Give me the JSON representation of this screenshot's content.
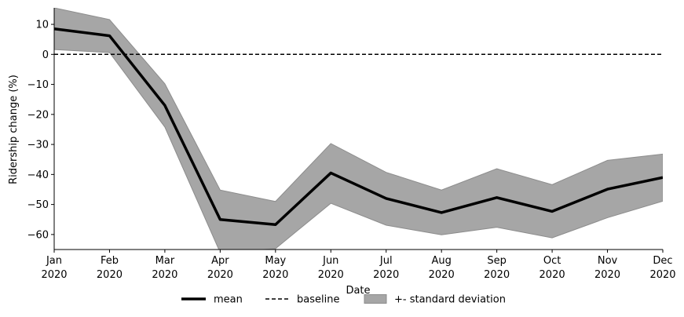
{
  "chart_data": {
    "type": "line",
    "title": "",
    "xlabel": "Date",
    "ylabel": "Ridership change (%)",
    "x_tick_labels": [
      [
        "Jan",
        "2020"
      ],
      [
        "Feb",
        "2020"
      ],
      [
        "Mar",
        "2020"
      ],
      [
        "Apr",
        "2020"
      ],
      [
        "May",
        "2020"
      ],
      [
        "Jun",
        "2020"
      ],
      [
        "Jul",
        "2020"
      ],
      [
        "Aug",
        "2020"
      ],
      [
        "Sep",
        "2020"
      ],
      [
        "Oct",
        "2020"
      ],
      [
        "Nov",
        "2020"
      ],
      [
        "Dec",
        "2020"
      ]
    ],
    "x": [
      "2020-01-01",
      "2020-02-01",
      "2020-03-01",
      "2020-04-01",
      "2020-05-01",
      "2020-06-01",
      "2020-07-01",
      "2020-08-01",
      "2020-09-01",
      "2020-10-01",
      "2020-11-01",
      "2020-12-01"
    ],
    "y_ticks": [
      10,
      0,
      -10,
      -20,
      -30,
      -40,
      -50,
      -60
    ],
    "ylim": [
      -65,
      15.5
    ],
    "series": [
      {
        "name": "mean",
        "color": "#000000",
        "values": [
          8.5,
          6.2,
          -17.0,
          -55.0,
          -56.7,
          -39.5,
          -48.0,
          -52.7,
          -47.7,
          -52.3,
          -44.9,
          -41.0
        ]
      }
    ],
    "band": {
      "name": "+- standard deviation",
      "color": "#a6a6a6",
      "edge_color": "#8c8c8c",
      "upper": [
        15.5,
        11.6,
        -9.8,
        -45.2,
        -49.0,
        -29.7,
        -39.3,
        -45.2,
        -38.1,
        -43.4,
        -35.3,
        -33.2
      ],
      "lower": [
        1.6,
        0.6,
        -24.2,
        -66.0,
        -64.7,
        -49.6,
        -56.9,
        -60.1,
        -57.6,
        -61.1,
        -54.4,
        -48.9
      ]
    },
    "baseline": {
      "name": "baseline",
      "value": 0,
      "color": "#000000",
      "style": "dashed"
    },
    "legend": {
      "placement": "bottom-center",
      "entries": [
        {
          "label": "mean",
          "kind": "line"
        },
        {
          "label": "baseline",
          "kind": "dashed"
        },
        {
          "label": "+- standard deviation",
          "kind": "patch"
        }
      ]
    },
    "grid": false
  }
}
